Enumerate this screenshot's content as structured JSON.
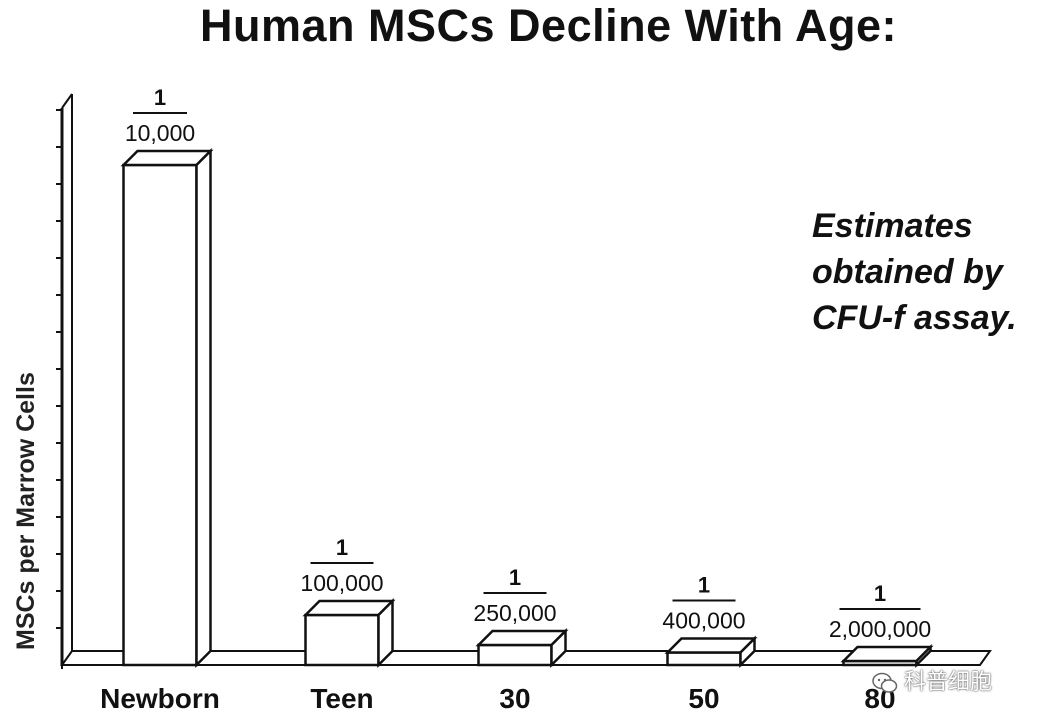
{
  "chart_data": {
    "type": "bar",
    "title": "Human MSCs Decline With Age:",
    "ylabel": "MSCs per Marrow Cells",
    "xlabel": "",
    "categories": [
      "Newborn",
      "Teen",
      "30",
      "50",
      "80"
    ],
    "values": [
      0.0001,
      1e-05,
      4e-06,
      2.5e-06,
      5e-07
    ],
    "data_labels": [
      {
        "numerator": "1",
        "denominator": "10,000"
      },
      {
        "numerator": "1",
        "denominator": "100,000"
      },
      {
        "numerator": "1",
        "denominator": "250,000"
      },
      {
        "numerator": "1",
        "denominator": "400,000"
      },
      {
        "numerator": "1",
        "denominator": "2,000,000"
      }
    ],
    "ylim": [
      0,
      0.00012
    ],
    "y_tick_count": 15,
    "grid": false,
    "style": "3d-bar"
  },
  "annotation": {
    "lines": [
      "Estimates",
      "obtained by",
      "CFU-f assay."
    ]
  },
  "watermark": {
    "text": "科普细胞",
    "icon": "wechat-icon"
  }
}
